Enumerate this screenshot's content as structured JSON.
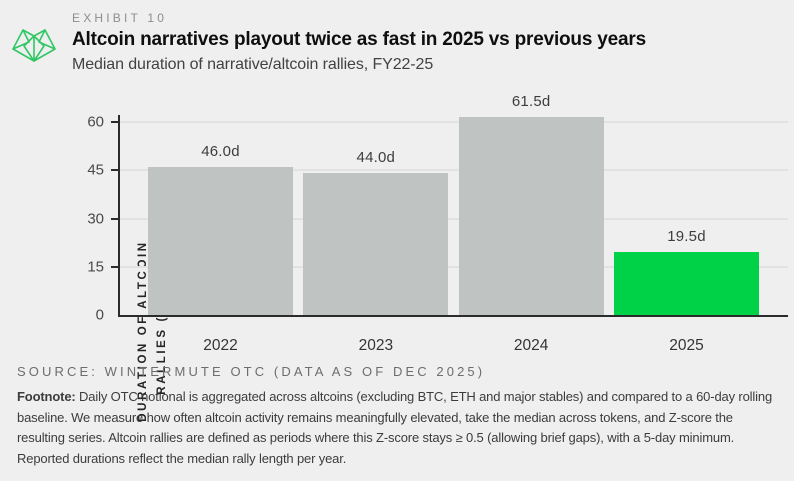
{
  "header": {
    "exhibit": "EXHIBIT 10",
    "title": "Altcoin narratives playout twice as fast in 2025 vs previous years",
    "subtitle": "Median duration of narrative/altcoin rallies, FY22-25",
    "logo_icon": "wintermute-logo"
  },
  "chart_data": {
    "type": "bar",
    "categories": [
      "2022",
      "2023",
      "2024",
      "2025"
    ],
    "values": [
      46.0,
      44.0,
      61.5,
      19.5
    ],
    "value_labels": [
      "46.0d",
      "44.0d",
      "61.5d",
      "19.5d"
    ],
    "title": "Altcoin narratives playout twice as fast in 2025 vs previous years",
    "subtitle": "Median duration of narrative/altcoin rallies, FY22-25",
    "xlabel": "",
    "ylabel_lines": [
      "DURATION OF ALTCOIN",
      "RALLIES (DAYS)"
    ],
    "yticks": [
      0,
      15,
      30,
      45,
      60
    ],
    "ylim": [
      0,
      62.8
    ],
    "grid": "horizontal",
    "legend": "none",
    "bar_colors": [
      "#bfc3c1",
      "#bfc3c1",
      "#bfc3c1",
      "#00d248"
    ],
    "highlighted_category": "2025"
  },
  "footer": {
    "source": "SOURCE: WINTERMUTE OTC (DATA AS OF DEC 2025)",
    "footnote_label": "Footnote:",
    "footnote_text": " Daily OTC notional is aggregated across altcoins (excluding BTC, ETH and major stables) and compared to a 60-day rolling baseline. We measure how often altcoin activity remains meaningfully elevated, take the median across tokens, and Z-score the resulting series. Altcoin rallies are defined as periods where this Z-score stays ≥ 0.5 (allowing brief gaps), with a 5-day minimum. Reported durations reflect the median rally length per year."
  },
  "colors": {
    "background": "#efefef",
    "bar_gray": "#bfc3c1",
    "bar_green": "#00d248",
    "axis": "#2b2b2b",
    "gridline": "#e2e2e2",
    "logo_green": "#2fc764"
  }
}
